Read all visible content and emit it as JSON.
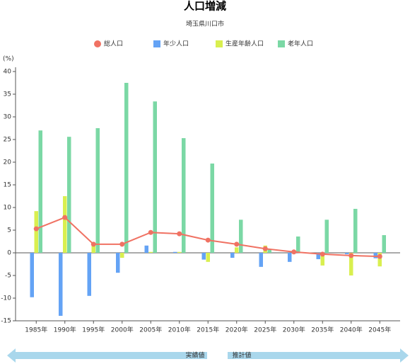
{
  "chart_data": {
    "type": "bar",
    "title": "人口増減",
    "subtitle": "埼玉県川口市",
    "y_label": "(%)",
    "categories": [
      "1985年",
      "1990年",
      "1995年",
      "2000年",
      "2005年",
      "2010年",
      "2015年",
      "2020年",
      "2025年",
      "2030年",
      "2035年",
      "2040年",
      "2045年"
    ],
    "series": [
      {
        "name": "総人口",
        "type": "line",
        "color": "#f07263",
        "values": [
          5.3,
          7.8,
          1.9,
          1.9,
          4.5,
          4.2,
          2.8,
          1.9,
          0.9,
          0.2,
          -0.3,
          -0.6,
          -0.8
        ]
      },
      {
        "name": "年少人口",
        "type": "bar",
        "color": "#64a3f5",
        "values": [
          -9.8,
          -13.9,
          -9.5,
          -4.4,
          1.6,
          0.2,
          -1.5,
          -1.1,
          -3.1,
          -2.0,
          -1.4,
          -0.3,
          -1.2
        ]
      },
      {
        "name": "生産年齢人口",
        "type": "bar",
        "color": "#d9ef4f",
        "values": [
          9.2,
          12.5,
          1.9,
          -1.1,
          0.2,
          0.2,
          -2.0,
          1.2,
          1.6,
          0.0,
          -2.8,
          -5.0,
          -3.0
        ]
      },
      {
        "name": "老年人口",
        "type": "bar",
        "color": "#7bd8a5",
        "values": [
          27.0,
          25.6,
          27.5,
          37.5,
          33.4,
          25.3,
          19.7,
          7.3,
          0.8,
          3.6,
          7.3,
          9.7,
          3.9
        ]
      }
    ],
    "ylim": [
      -15,
      40
    ],
    "yticks": [
      -15,
      -10,
      -5,
      0,
      5,
      10,
      15,
      20,
      25,
      30,
      35,
      40
    ],
    "annotations": [
      "実績値",
      "推計値"
    ]
  }
}
